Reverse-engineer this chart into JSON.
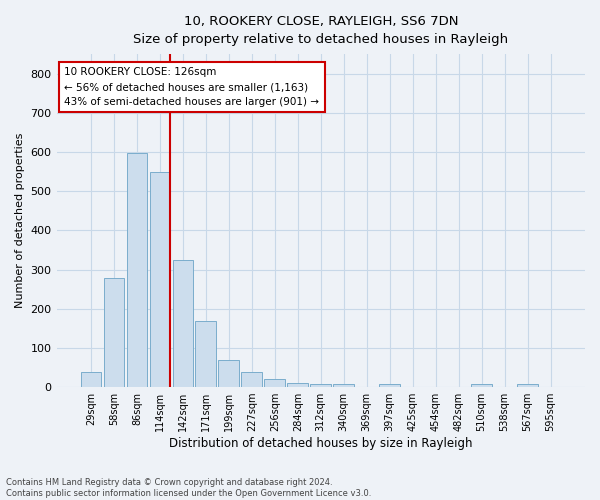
{
  "title": "10, ROOKERY CLOSE, RAYLEIGH, SS6 7DN",
  "subtitle": "Size of property relative to detached houses in Rayleigh",
  "xlabel": "Distribution of detached houses by size in Rayleigh",
  "ylabel": "Number of detached properties",
  "categories": [
    "29sqm",
    "58sqm",
    "86sqm",
    "114sqm",
    "142sqm",
    "171sqm",
    "199sqm",
    "227sqm",
    "256sqm",
    "284sqm",
    "312sqm",
    "340sqm",
    "369sqm",
    "397sqm",
    "425sqm",
    "454sqm",
    "482sqm",
    "510sqm",
    "538sqm",
    "567sqm",
    "595sqm"
  ],
  "values": [
    38,
    278,
    597,
    550,
    325,
    168,
    68,
    38,
    20,
    10,
    8,
    8,
    0,
    8,
    0,
    0,
    0,
    8,
    0,
    8,
    0
  ],
  "bar_color": "#ccdded",
  "bar_edge_color": "#7aadcc",
  "grid_color": "#c8d8e8",
  "vline_color": "#cc0000",
  "annotation_box_color": "#cc0000",
  "annotation_text_line1": "10 ROOKERY CLOSE: 126sqm",
  "annotation_text_line2": "← 56% of detached houses are smaller (1,163)",
  "annotation_text_line3": "43% of semi-detached houses are larger (901) →",
  "ylim": [
    0,
    850
  ],
  "yticks": [
    0,
    100,
    200,
    300,
    400,
    500,
    600,
    700,
    800
  ],
  "footnote1": "Contains HM Land Registry data © Crown copyright and database right 2024.",
  "footnote2": "Contains public sector information licensed under the Open Government Licence v3.0.",
  "fig_bg": "#eef2f7",
  "ax_bg": "#eef2f7",
  "vline_pos": 3.43
}
